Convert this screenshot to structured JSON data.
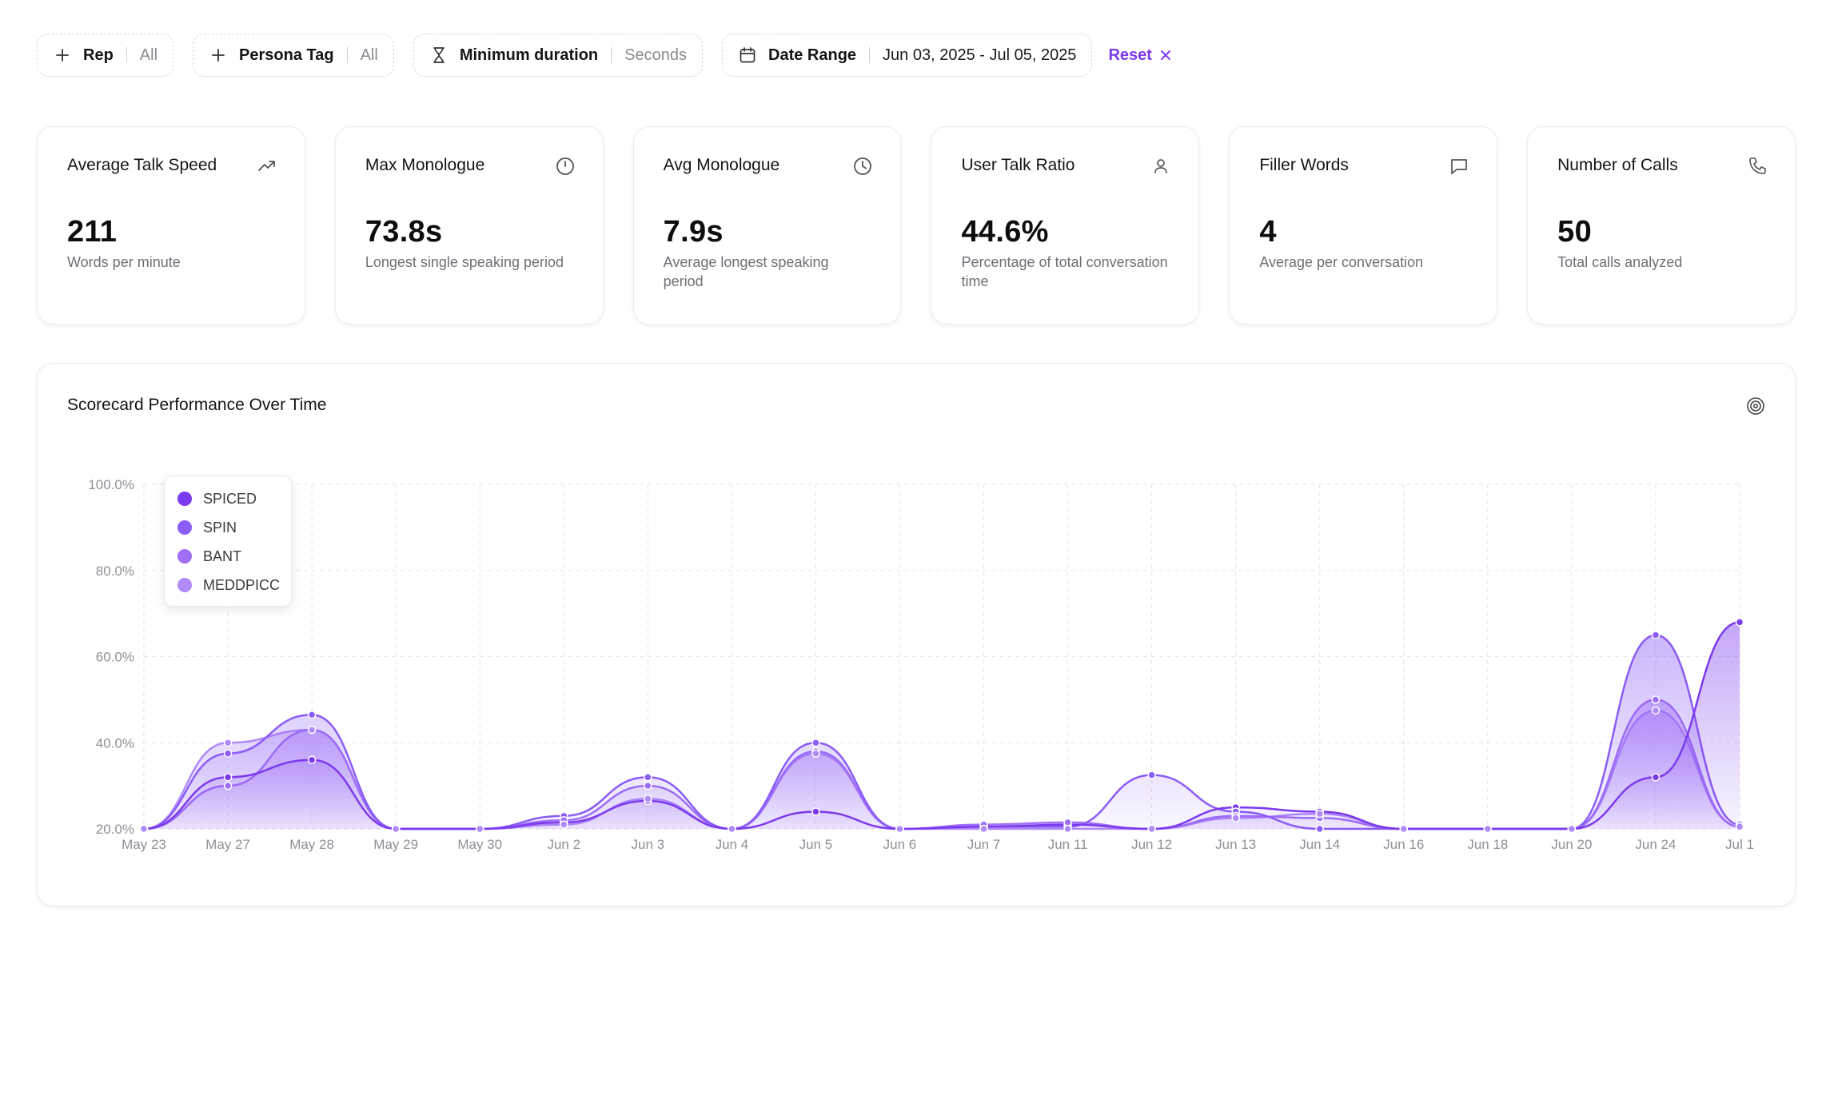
{
  "filters": {
    "rep": {
      "label": "Rep",
      "value": "All"
    },
    "persona": {
      "label": "Persona Tag",
      "value": "All"
    },
    "duration": {
      "label": "Minimum duration",
      "value": "Seconds"
    },
    "date": {
      "label": "Date Range",
      "value": "Jun 03, 2025 - Jul 05, 2025"
    },
    "reset_label": "Reset"
  },
  "cards": [
    {
      "title": "Average Talk Speed",
      "value": "211",
      "sub": "Words per minute",
      "icon": "trending-up-icon"
    },
    {
      "title": "Max Monologue",
      "value": "73.8s",
      "sub": "Longest single speaking period",
      "icon": "stopwatch-icon"
    },
    {
      "title": "Avg Monologue",
      "value": "7.9s",
      "sub": "Average longest speaking period",
      "icon": "clock-icon"
    },
    {
      "title": "User Talk Ratio",
      "value": "44.6%",
      "sub": "Percentage of total conversation time",
      "icon": "user-icon"
    },
    {
      "title": "Filler Words",
      "value": "4",
      "sub": "Average per conversation",
      "icon": "message-icon"
    },
    {
      "title": "Number of Calls",
      "value": "50",
      "sub": "Total calls analyzed",
      "icon": "phone-icon"
    }
  ],
  "chart": {
    "title": "Scorecard Performance Over Time",
    "icon": "target-icon"
  },
  "chart_data": {
    "type": "area",
    "x": [
      "May 23",
      "May 27",
      "May 28",
      "May 29",
      "May 30",
      "Jun 2",
      "Jun 3",
      "Jun 4",
      "Jun 5",
      "Jun 6",
      "Jun 7",
      "Jun 11",
      "Jun 12",
      "Jun 13",
      "Jun 14",
      "Jun 16",
      "Jun 18",
      "Jun 20",
      "Jun 24",
      "Jul 1"
    ],
    "ylim": [
      20,
      100
    ],
    "yticks": [
      "20.0%",
      "40.0%",
      "60.0%",
      "80.0%",
      "100.0%"
    ],
    "grid": true,
    "legend_position": "top-left",
    "series": [
      {
        "name": "SPICED",
        "color": "#7c3aed",
        "values": [
          20,
          32,
          36,
          20,
          20,
          21.5,
          26.5,
          20,
          24,
          20,
          20.5,
          21,
          20,
          25,
          24,
          20,
          20,
          20,
          32,
          68
        ]
      },
      {
        "name": "SPIN",
        "color": "#8b5cf6",
        "values": [
          20,
          37.5,
          46.5,
          20,
          20,
          23,
          32,
          20,
          40,
          20,
          20.5,
          20.5,
          32.5,
          24,
          20,
          20,
          20,
          20,
          65,
          21
        ]
      },
      {
        "name": "BANT",
        "color": "#9f6ff7",
        "values": [
          20,
          30,
          43,
          20,
          20,
          22,
          30,
          20,
          38,
          20,
          21,
          21.5,
          20,
          23,
          22.5,
          20,
          20,
          20,
          50,
          20.5
        ]
      },
      {
        "name": "MEDDPICC",
        "color": "#b08af9",
        "values": [
          20,
          40,
          43,
          20,
          20,
          21,
          27,
          20,
          37.5,
          20,
          20,
          20,
          20,
          22.5,
          23.5,
          20,
          20,
          20,
          47.5,
          20.5
        ]
      }
    ]
  }
}
